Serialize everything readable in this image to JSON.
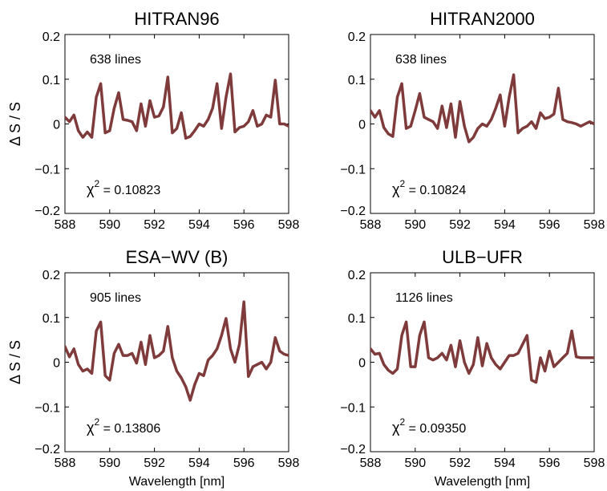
{
  "colors": {
    "line": "#7f3b3b",
    "axis": "#000000",
    "background": "#ffffff"
  },
  "shared": {
    "ylabel": "Δ S / S",
    "xlabel": "Wavelength [nm]",
    "xlim": [
      588,
      598
    ],
    "ylim": [
      -0.2,
      0.2
    ],
    "xticks": [
      "588",
      "590",
      "592",
      "594",
      "596",
      "598"
    ],
    "yticks": [
      "-0.2",
      "-0.1",
      "0",
      "0.1",
      "0.2"
    ]
  },
  "chart_data": [
    {
      "type": "line",
      "title": "HITRAN96",
      "annotation_lines": "638 lines",
      "annotation_chi_symbol": "χ",
      "annotation_chi_exp": "2",
      "annotation_chi_value": "= 0.10823",
      "xlim": [
        588,
        598
      ],
      "ylim": [
        -0.2,
        0.2
      ],
      "x": [
        588.0,
        588.2,
        588.4,
        588.6,
        588.8,
        589.0,
        589.2,
        589.4,
        589.6,
        589.8,
        590.0,
        590.2,
        590.4,
        590.6,
        590.8,
        591.0,
        591.2,
        591.4,
        591.6,
        591.8,
        592.0,
        592.2,
        592.4,
        592.6,
        592.8,
        593.0,
        593.2,
        593.4,
        593.6,
        593.8,
        594.0,
        594.2,
        594.4,
        594.6,
        594.8,
        595.0,
        595.2,
        595.4,
        595.6,
        595.8,
        596.0,
        596.2,
        596.4,
        596.6,
        596.8,
        597.0,
        597.2,
        597.4,
        597.6,
        597.8,
        598.0
      ],
      "y": [
        0.015,
        0.005,
        0.02,
        -0.015,
        -0.03,
        -0.018,
        -0.03,
        0.06,
        0.09,
        -0.02,
        -0.015,
        0.035,
        0.07,
        0.01,
        0.008,
        0.005,
        -0.015,
        0.045,
        -0.005,
        0.052,
        0.015,
        0.018,
        0.038,
        0.105,
        -0.02,
        -0.01,
        0.025,
        -0.032,
        -0.028,
        -0.015,
        0.0,
        -0.005,
        0.01,
        0.035,
        0.09,
        -0.01,
        0.06,
        0.112,
        -0.018,
        -0.008,
        -0.005,
        0.005,
        0.03,
        -0.005,
        0.0,
        0.02,
        0.015,
        0.098,
        0.0,
        0.0,
        -0.005
      ]
    },
    {
      "type": "line",
      "title": "HITRAN2000",
      "annotation_lines": "638 lines",
      "annotation_chi_symbol": "χ",
      "annotation_chi_exp": "2",
      "annotation_chi_value": "= 0.10824",
      "xlim": [
        588,
        598
      ],
      "ylim": [
        -0.2,
        0.2
      ],
      "x": [
        588.0,
        588.2,
        588.4,
        588.6,
        588.8,
        589.0,
        589.2,
        589.4,
        589.6,
        589.8,
        590.0,
        590.2,
        590.4,
        590.6,
        590.8,
        591.0,
        591.2,
        591.4,
        591.6,
        591.8,
        592.0,
        592.2,
        592.4,
        592.6,
        592.8,
        593.0,
        593.2,
        593.4,
        593.6,
        593.8,
        594.0,
        594.2,
        594.4,
        594.6,
        594.8,
        595.0,
        595.2,
        595.4,
        595.6,
        595.8,
        596.0,
        596.2,
        596.4,
        596.6,
        596.8,
        597.0,
        597.2,
        597.4,
        597.6,
        597.8,
        598.0
      ],
      "y": [
        0.03,
        0.015,
        0.03,
        -0.008,
        -0.022,
        -0.028,
        0.06,
        0.09,
        -0.01,
        -0.005,
        0.03,
        0.068,
        0.015,
        0.01,
        0.005,
        -0.01,
        0.04,
        -0.008,
        0.045,
        -0.03,
        0.05,
        -0.005,
        -0.04,
        -0.03,
        -0.01,
        0.0,
        -0.005,
        0.01,
        0.035,
        0.065,
        -0.005,
        0.06,
        0.11,
        -0.02,
        -0.01,
        -0.005,
        0.005,
        -0.01,
        0.025,
        0.012,
        0.015,
        0.022,
        0.08,
        0.01,
        0.005,
        0.003,
        0.0,
        -0.005,
        0.0,
        0.005,
        0.0
      ]
    },
    {
      "type": "line",
      "title": "ESA−WV (B)",
      "annotation_lines": "905 lines",
      "annotation_chi_symbol": "χ",
      "annotation_chi_exp": "2",
      "annotation_chi_value": "= 0.13806",
      "xlim": [
        588,
        598
      ],
      "ylim": [
        -0.2,
        0.2
      ],
      "x": [
        588.0,
        588.2,
        588.4,
        588.6,
        588.8,
        589.0,
        589.2,
        589.4,
        589.6,
        589.8,
        590.0,
        590.2,
        590.4,
        590.6,
        590.8,
        591.0,
        591.2,
        591.4,
        591.6,
        591.8,
        592.0,
        592.2,
        592.4,
        592.6,
        592.8,
        593.0,
        593.2,
        593.4,
        593.6,
        593.8,
        594.0,
        594.2,
        594.4,
        594.6,
        594.8,
        595.0,
        595.2,
        595.4,
        595.6,
        595.8,
        596.0,
        596.2,
        596.4,
        596.6,
        596.8,
        597.0,
        597.2,
        597.4,
        597.6,
        597.8,
        598.0
      ],
      "y": [
        0.035,
        0.012,
        0.03,
        -0.005,
        -0.02,
        -0.015,
        -0.025,
        0.07,
        0.09,
        -0.03,
        -0.04,
        0.02,
        0.04,
        0.015,
        0.015,
        0.02,
        -0.002,
        0.045,
        -0.005,
        0.06,
        0.01,
        0.015,
        0.025,
        0.08,
        0.01,
        -0.02,
        -0.035,
        -0.055,
        -0.085,
        -0.05,
        -0.025,
        -0.03,
        0.005,
        0.015,
        0.03,
        0.06,
        0.098,
        0.03,
        0.0,
        0.04,
        0.135,
        -0.032,
        -0.01,
        -0.005,
        0.0,
        -0.015,
        0.0,
        0.055,
        0.025,
        0.018,
        0.015
      ]
    },
    {
      "type": "line",
      "title": "ULB−UFR",
      "annotation_lines": "1126 lines",
      "annotation_chi_symbol": "χ",
      "annotation_chi_exp": "2",
      "annotation_chi_value": "= 0.09350",
      "xlim": [
        588,
        598
      ],
      "ylim": [
        -0.2,
        0.2
      ],
      "x": [
        588.0,
        588.2,
        588.4,
        588.6,
        588.8,
        589.0,
        589.2,
        589.4,
        589.6,
        589.8,
        590.0,
        590.2,
        590.4,
        590.6,
        590.8,
        591.0,
        591.2,
        591.4,
        591.6,
        591.8,
        592.0,
        592.2,
        592.4,
        592.6,
        592.8,
        593.0,
        593.2,
        593.4,
        593.6,
        593.8,
        594.0,
        594.2,
        594.4,
        594.6,
        594.8,
        595.0,
        595.2,
        595.4,
        595.6,
        595.8,
        596.0,
        596.2,
        596.4,
        596.6,
        596.8,
        597.0,
        597.2,
        597.4,
        597.6,
        597.8,
        598.0
      ],
      "y": [
        0.03,
        0.018,
        0.02,
        -0.005,
        -0.018,
        -0.025,
        -0.015,
        0.06,
        0.09,
        -0.01,
        -0.01,
        0.06,
        0.09,
        0.01,
        0.005,
        0.01,
        0.02,
        0.005,
        0.038,
        -0.01,
        0.048,
        0.0,
        -0.025,
        -0.005,
        0.055,
        -0.008,
        0.042,
        0.01,
        -0.005,
        -0.015,
        0.0,
        0.015,
        0.015,
        0.02,
        0.04,
        0.06,
        -0.04,
        -0.045,
        0.01,
        -0.02,
        0.025,
        -0.01,
        0.0,
        0.01,
        0.02,
        0.07,
        0.012,
        0.01,
        0.01,
        0.01,
        0.01
      ]
    }
  ]
}
